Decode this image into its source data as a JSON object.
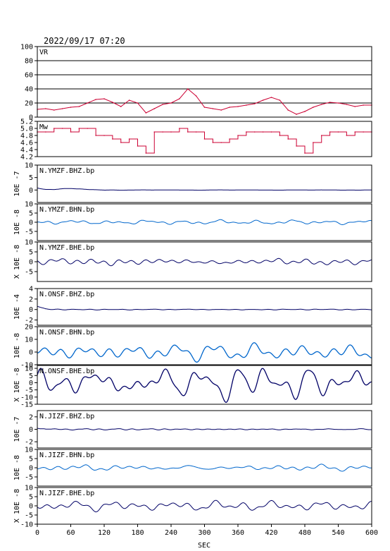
{
  "datetime": "2022/09/17 07:20",
  "xlabel": "SEC",
  "colors": {
    "red": "#cc0033",
    "navy": "#000066",
    "blue": "#0066cc",
    "gridline": "#000000"
  },
  "chart_data": [
    {
      "id": "vr",
      "type": "line",
      "label": "VR",
      "ylabel": "",
      "ylim": [
        0,
        100
      ],
      "yticks": [
        "0",
        "20",
        "40",
        "60",
        "80",
        "100"
      ],
      "grid": true,
      "color": "red",
      "style": "smooth",
      "x": [
        0,
        15,
        30,
        45,
        60,
        75,
        90,
        105,
        120,
        135,
        150,
        165,
        180,
        195,
        210,
        225,
        240,
        255,
        270,
        285,
        300,
        315,
        330,
        345,
        360,
        375,
        390,
        405,
        420,
        435,
        450,
        465,
        480,
        495,
        510,
        525,
        540,
        555,
        570,
        585,
        600
      ],
      "y": [
        11,
        12,
        10,
        12,
        14,
        15,
        20,
        25,
        26,
        21,
        15,
        24,
        20,
        6,
        12,
        18,
        20,
        26,
        40,
        30,
        14,
        12,
        10,
        14,
        15,
        17,
        19,
        24,
        28,
        24,
        10,
        4,
        8,
        14,
        18,
        21,
        20,
        18,
        15,
        17,
        17
      ]
    },
    {
      "id": "mw",
      "type": "line",
      "label": "Mw",
      "ylabel": "",
      "ylim": [
        4.2,
        5.2
      ],
      "yticks": [
        "4.2",
        "4.4",
        "4.6",
        "4.8",
        "5.0",
        "5.2"
      ],
      "grid": false,
      "color": "red",
      "style": "step",
      "x": [
        0,
        15,
        30,
        45,
        60,
        75,
        90,
        105,
        120,
        135,
        150,
        165,
        180,
        195,
        210,
        225,
        240,
        255,
        270,
        285,
        300,
        315,
        330,
        345,
        360,
        375,
        390,
        405,
        420,
        435,
        450,
        465,
        480,
        495,
        510,
        525,
        540,
        555,
        570,
        585,
        600
      ],
      "y": [
        4.9,
        4.9,
        5.0,
        5.0,
        4.9,
        5.0,
        5.0,
        4.8,
        4.8,
        4.7,
        4.6,
        4.7,
        4.5,
        4.3,
        4.9,
        4.9,
        4.9,
        5.0,
        4.9,
        4.9,
        4.7,
        4.6,
        4.6,
        4.7,
        4.8,
        4.9,
        4.9,
        4.9,
        4.9,
        4.8,
        4.7,
        4.5,
        4.3,
        4.6,
        4.8,
        4.9,
        4.9,
        4.8,
        4.9,
        4.9,
        4.9
      ]
    },
    {
      "id": "ymzf_bhz",
      "type": "line",
      "label": "N.YMZF.BHZ.bp",
      "ylabel": "10E -7",
      "ylim": [
        -5,
        10
      ],
      "yticks": [
        "0",
        "5",
        "10"
      ],
      "grid": false,
      "color": "navy",
      "style": "seismic",
      "x": [
        0,
        5,
        15,
        30,
        45,
        60,
        75,
        90,
        120,
        600
      ],
      "y": [
        0.8,
        0.6,
        0.3,
        0.2,
        0.5,
        0.6,
        0.4,
        0.2,
        0.0,
        0.0
      ],
      "amp": 0.05,
      "seed": 11
    },
    {
      "id": "ymzf_bhn",
      "type": "line",
      "label": "N.YMZF.BHN.bp",
      "ylabel": "10E -8",
      "ylim": [
        -10,
        10
      ],
      "yticks": [
        "-5",
        "0",
        "5",
        "10"
      ],
      "grid": false,
      "color": "blue",
      "style": "seismic",
      "x": [
        0,
        600
      ],
      "y": [
        0,
        0
      ],
      "amp": 0.9,
      "seed": 23
    },
    {
      "id": "ymzf_bhe",
      "type": "line",
      "label": "N.YMZF.BHE.bp",
      "ylabel": "X 10E -8",
      "ylim": [
        -10,
        10
      ],
      "yticks": [
        "-5",
        "0",
        "5",
        "10"
      ],
      "grid": false,
      "color": "navy",
      "style": "seismic",
      "x": [
        0,
        600
      ],
      "y": [
        0,
        0
      ],
      "amp": 1.2,
      "seed": 37
    },
    {
      "id": "onsf_bhz",
      "type": "line",
      "label": "N.ONSF.BHZ.bp",
      "ylabel": "10E -4",
      "ylim": [
        -3,
        4
      ],
      "yticks": [
        "-2",
        "0",
        "2",
        "4"
      ],
      "grid": false,
      "color": "navy",
      "style": "seismic",
      "x": [
        0,
        5,
        15,
        30,
        600
      ],
      "y": [
        0.6,
        0.4,
        0.1,
        0.0,
        0.0
      ],
      "amp": 0.05,
      "seed": 41
    },
    {
      "id": "onsf_bhn",
      "type": "line",
      "label": "N.ONSF.BHN.bp",
      "ylabel": "10E -8",
      "ylim": [
        -10,
        20
      ],
      "yticks": [
        "-10",
        "0",
        "10",
        "20"
      ],
      "grid": false,
      "color": "blue",
      "style": "seismic",
      "x": [
        0,
        600
      ],
      "y": [
        0,
        0
      ],
      "amp": 4.5,
      "seed": 53
    },
    {
      "id": "onsf_bhe",
      "type": "line",
      "label": "N.ONSF.BHE.bp",
      "ylabel": "X 10E -8",
      "ylim": [
        -15,
        12
      ],
      "yticks": [
        "-15",
        "-10",
        "-5",
        "0",
        "5",
        "10"
      ],
      "grid": false,
      "color": "navy",
      "style": "seismic",
      "x": [
        0,
        600
      ],
      "y": [
        0,
        0
      ],
      "amp": 8.5,
      "seed": 67
    },
    {
      "id": "jizf_bhz",
      "type": "line",
      "label": "N.JIZF.BHZ.bp",
      "ylabel": "10E -7",
      "ylim": [
        -3,
        3
      ],
      "yticks": [
        "-2",
        "0",
        "2"
      ],
      "grid": false,
      "color": "navy",
      "style": "seismic",
      "x": [
        0,
        5,
        15,
        600
      ],
      "y": [
        0.3,
        0.2,
        0.0,
        0.0
      ],
      "amp": 0.08,
      "seed": 71
    },
    {
      "id": "jizf_bhn",
      "type": "line",
      "label": "N.JIZF.BHN.bp",
      "ylabel": "10E -8",
      "ylim": [
        -10,
        10
      ],
      "yticks": [
        "-5",
        "0",
        "5",
        "10"
      ],
      "grid": false,
      "color": "blue",
      "style": "seismic",
      "x": [
        0,
        600
      ],
      "y": [
        0,
        0
      ],
      "amp": 1.1,
      "seed": 83
    },
    {
      "id": "jizf_bhe",
      "type": "line",
      "label": "N.JIZF.BHE.bp",
      "ylabel": "X 10E -8",
      "ylim": [
        -10,
        10
      ],
      "yticks": [
        "-10",
        "-5",
        "0",
        "5",
        "10"
      ],
      "grid": false,
      "color": "navy",
      "style": "seismic",
      "x": [
        0,
        600
      ],
      "y": [
        0,
        0
      ],
      "amp": 2.0,
      "seed": 97
    }
  ],
  "xaxis": {
    "xlim": [
      0,
      600
    ],
    "ticks": [
      "0",
      "60",
      "120",
      "180",
      "240",
      "300",
      "360",
      "420",
      "480",
      "540",
      "600"
    ]
  }
}
